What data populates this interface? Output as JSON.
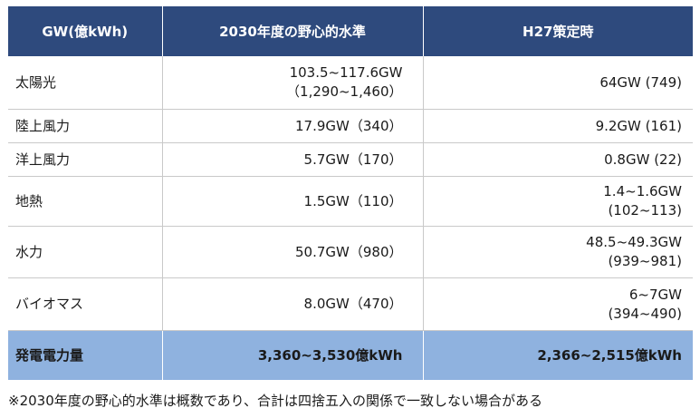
{
  "header": {
    "col1": "GW(億kWh)",
    "col2": "2030年度の野心的水準",
    "col3": "H27策定時"
  },
  "rows": [
    {
      "name": "太陽光",
      "target": [
        "103.5~117.6GW",
        "（1,290~1,460）"
      ],
      "h27": [
        "64GW (749)"
      ]
    },
    {
      "name": "陸上風力",
      "target": [
        "17.9GW（340）"
      ],
      "h27": [
        "9.2GW (161)"
      ]
    },
    {
      "name": "洋上風力",
      "target": [
        "5.7GW（170）"
      ],
      "h27": [
        "0.8GW (22)"
      ]
    },
    {
      "name": "地熱",
      "target": [
        "1.5GW（110）"
      ],
      "h27": [
        "1.4~1.6GW",
        "(102~113)"
      ]
    },
    {
      "name": "水力",
      "target": [
        "50.7GW（980）"
      ],
      "h27": [
        "48.5~49.3GW",
        "(939~981)"
      ]
    },
    {
      "name": "バイオマス",
      "target": [
        "8.0GW（470）"
      ],
      "h27": [
        "6~7GW",
        "(394~490)"
      ]
    }
  ],
  "total": {
    "name": "発電電力量",
    "target": "3,360~3,530億kWh",
    "h27": "2,366~2,515億kWh"
  },
  "footnote": "※2030年度の野心的水準は概数であり、合計は四捨五入の関係で一致しない場合がある",
  "colors": {
    "header_bg": "#2e4a7d",
    "total_bg": "#8fb2df",
    "grid": "#c9c9c9"
  }
}
